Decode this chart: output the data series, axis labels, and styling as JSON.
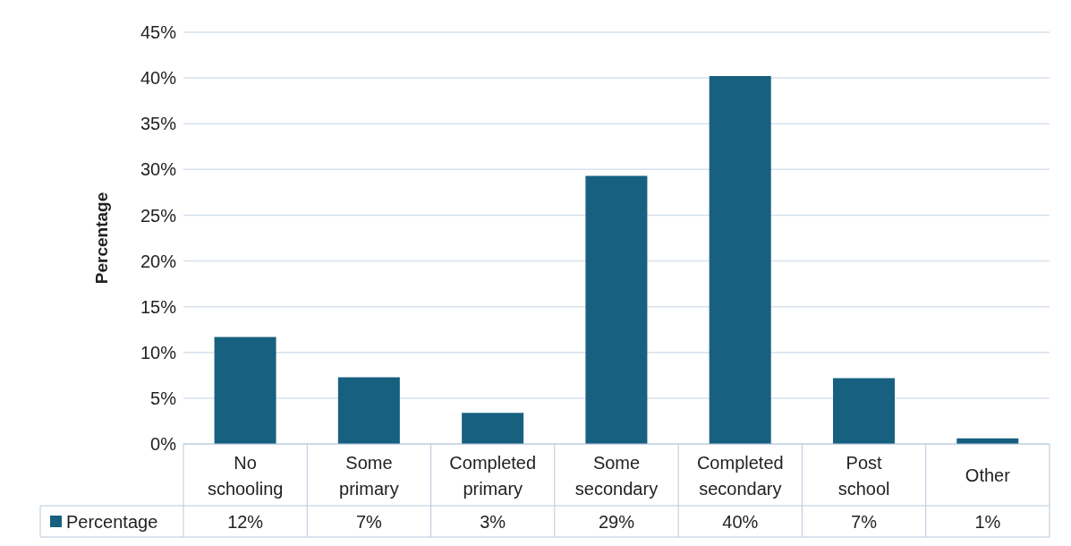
{
  "chart_data": {
    "type": "bar",
    "ylabel": "Percentage",
    "categories": [
      "No schooling",
      "Some primary",
      "Completed primary",
      "Some secondary",
      "Completed secondary",
      "Post school",
      "Other"
    ],
    "series": [
      {
        "name": "Percentage",
        "color": "#17607f",
        "values": [
          11.7,
          7.3,
          3.4,
          29.3,
          40.2,
          7.2,
          0.6
        ],
        "value_labels": [
          "12%",
          "7%",
          "3%",
          "29%",
          "40%",
          "7%",
          "1%"
        ]
      }
    ],
    "ylim": [
      0,
      45
    ],
    "yticks": [
      {
        "value": 0,
        "label": "0%"
      },
      {
        "value": 5,
        "label": "5%"
      },
      {
        "value": 10,
        "label": "10%"
      },
      {
        "value": 15,
        "label": "15%"
      },
      {
        "value": 20,
        "label": "20%"
      },
      {
        "value": 25,
        "label": "25%"
      },
      {
        "value": 30,
        "label": "30%"
      },
      {
        "value": 35,
        "label": "35%"
      },
      {
        "value": 40,
        "label": "40%"
      },
      {
        "value": 45,
        "label": "45%"
      }
    ],
    "grid": "y",
    "legend": "bottom left"
  }
}
